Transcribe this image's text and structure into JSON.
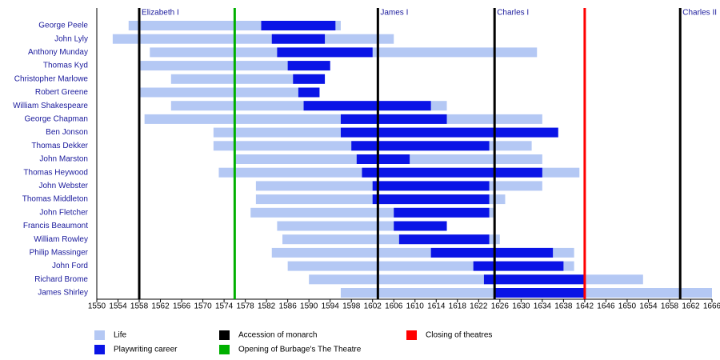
{
  "chart_data": {
    "type": "timeline",
    "categories": [
      "George Peele",
      "John Lyly",
      "Anthony Munday",
      "Thomas Kyd",
      "Christopher Marlowe",
      "Robert Greene",
      "William Shakespeare",
      "George Chapman",
      "Ben Jonson",
      "Thomas Dekker",
      "John Marston",
      "Thomas Heywood",
      "John Webster",
      "Thomas Middleton",
      "John Fletcher",
      "Francis Beaumont",
      "William Rowley",
      "Philip Massinger",
      "John Ford",
      "Richard Brome",
      "James Shirley"
    ],
    "series": [
      {
        "name": "Life",
        "color": "#b4c8f4",
        "start": [
          1556,
          1553,
          1560,
          1558,
          1564,
          1558,
          1564,
          1559,
          1572,
          1572,
          1576,
          1573,
          1580,
          1580,
          1579,
          1584,
          1585,
          1583,
          1586,
          1590,
          1596
        ],
        "end": [
          1596,
          1606,
          1633,
          1594,
          1593,
          1592,
          1616,
          1634,
          1637,
          1632,
          1634,
          1641,
          1634,
          1627,
          1625,
          1616,
          1626,
          1640,
          1640,
          1653,
          1666
        ]
      },
      {
        "name": "Playwriting career",
        "color": "#0a14e6",
        "start": [
          1581,
          1583,
          1584,
          1586,
          1587,
          1588,
          1589,
          1596,
          1596,
          1598,
          1599,
          1600,
          1602,
          1602,
          1606,
          1606,
          1607,
          1613,
          1621,
          1623,
          1625
        ],
        "end": [
          1595,
          1593,
          1602,
          1594,
          1593,
          1592,
          1613,
          1616,
          1637,
          1624,
          1609,
          1634,
          1624,
          1624,
          1624,
          1616,
          1624,
          1636,
          1638,
          1642,
          1642
        ]
      }
    ],
    "events": [
      {
        "name": "Accession of monarch",
        "color": "#000000",
        "items": [
          {
            "label": "Elizabeth I",
            "year": 1558
          },
          {
            "label": "James I",
            "year": 1603
          },
          {
            "label": "Charles I",
            "year": 1625
          },
          {
            "label": "Charles II",
            "year": 1660
          }
        ]
      },
      {
        "name": "Opening of Burbage's The Theatre",
        "color": "#00b000",
        "items": [
          {
            "year": 1576
          }
        ]
      },
      {
        "name": "Closing of theatres",
        "color": "#ff0000",
        "items": [
          {
            "year": 1642
          }
        ]
      }
    ],
    "xlim": [
      1550,
      1666
    ],
    "xticks": [
      1550,
      1554,
      1558,
      1562,
      1566,
      1570,
      1574,
      1578,
      1582,
      1586,
      1590,
      1594,
      1598,
      1602,
      1606,
      1610,
      1614,
      1618,
      1622,
      1626,
      1630,
      1634,
      1638,
      1642,
      1646,
      1650,
      1654,
      1658,
      1662,
      1666
    ]
  }
}
